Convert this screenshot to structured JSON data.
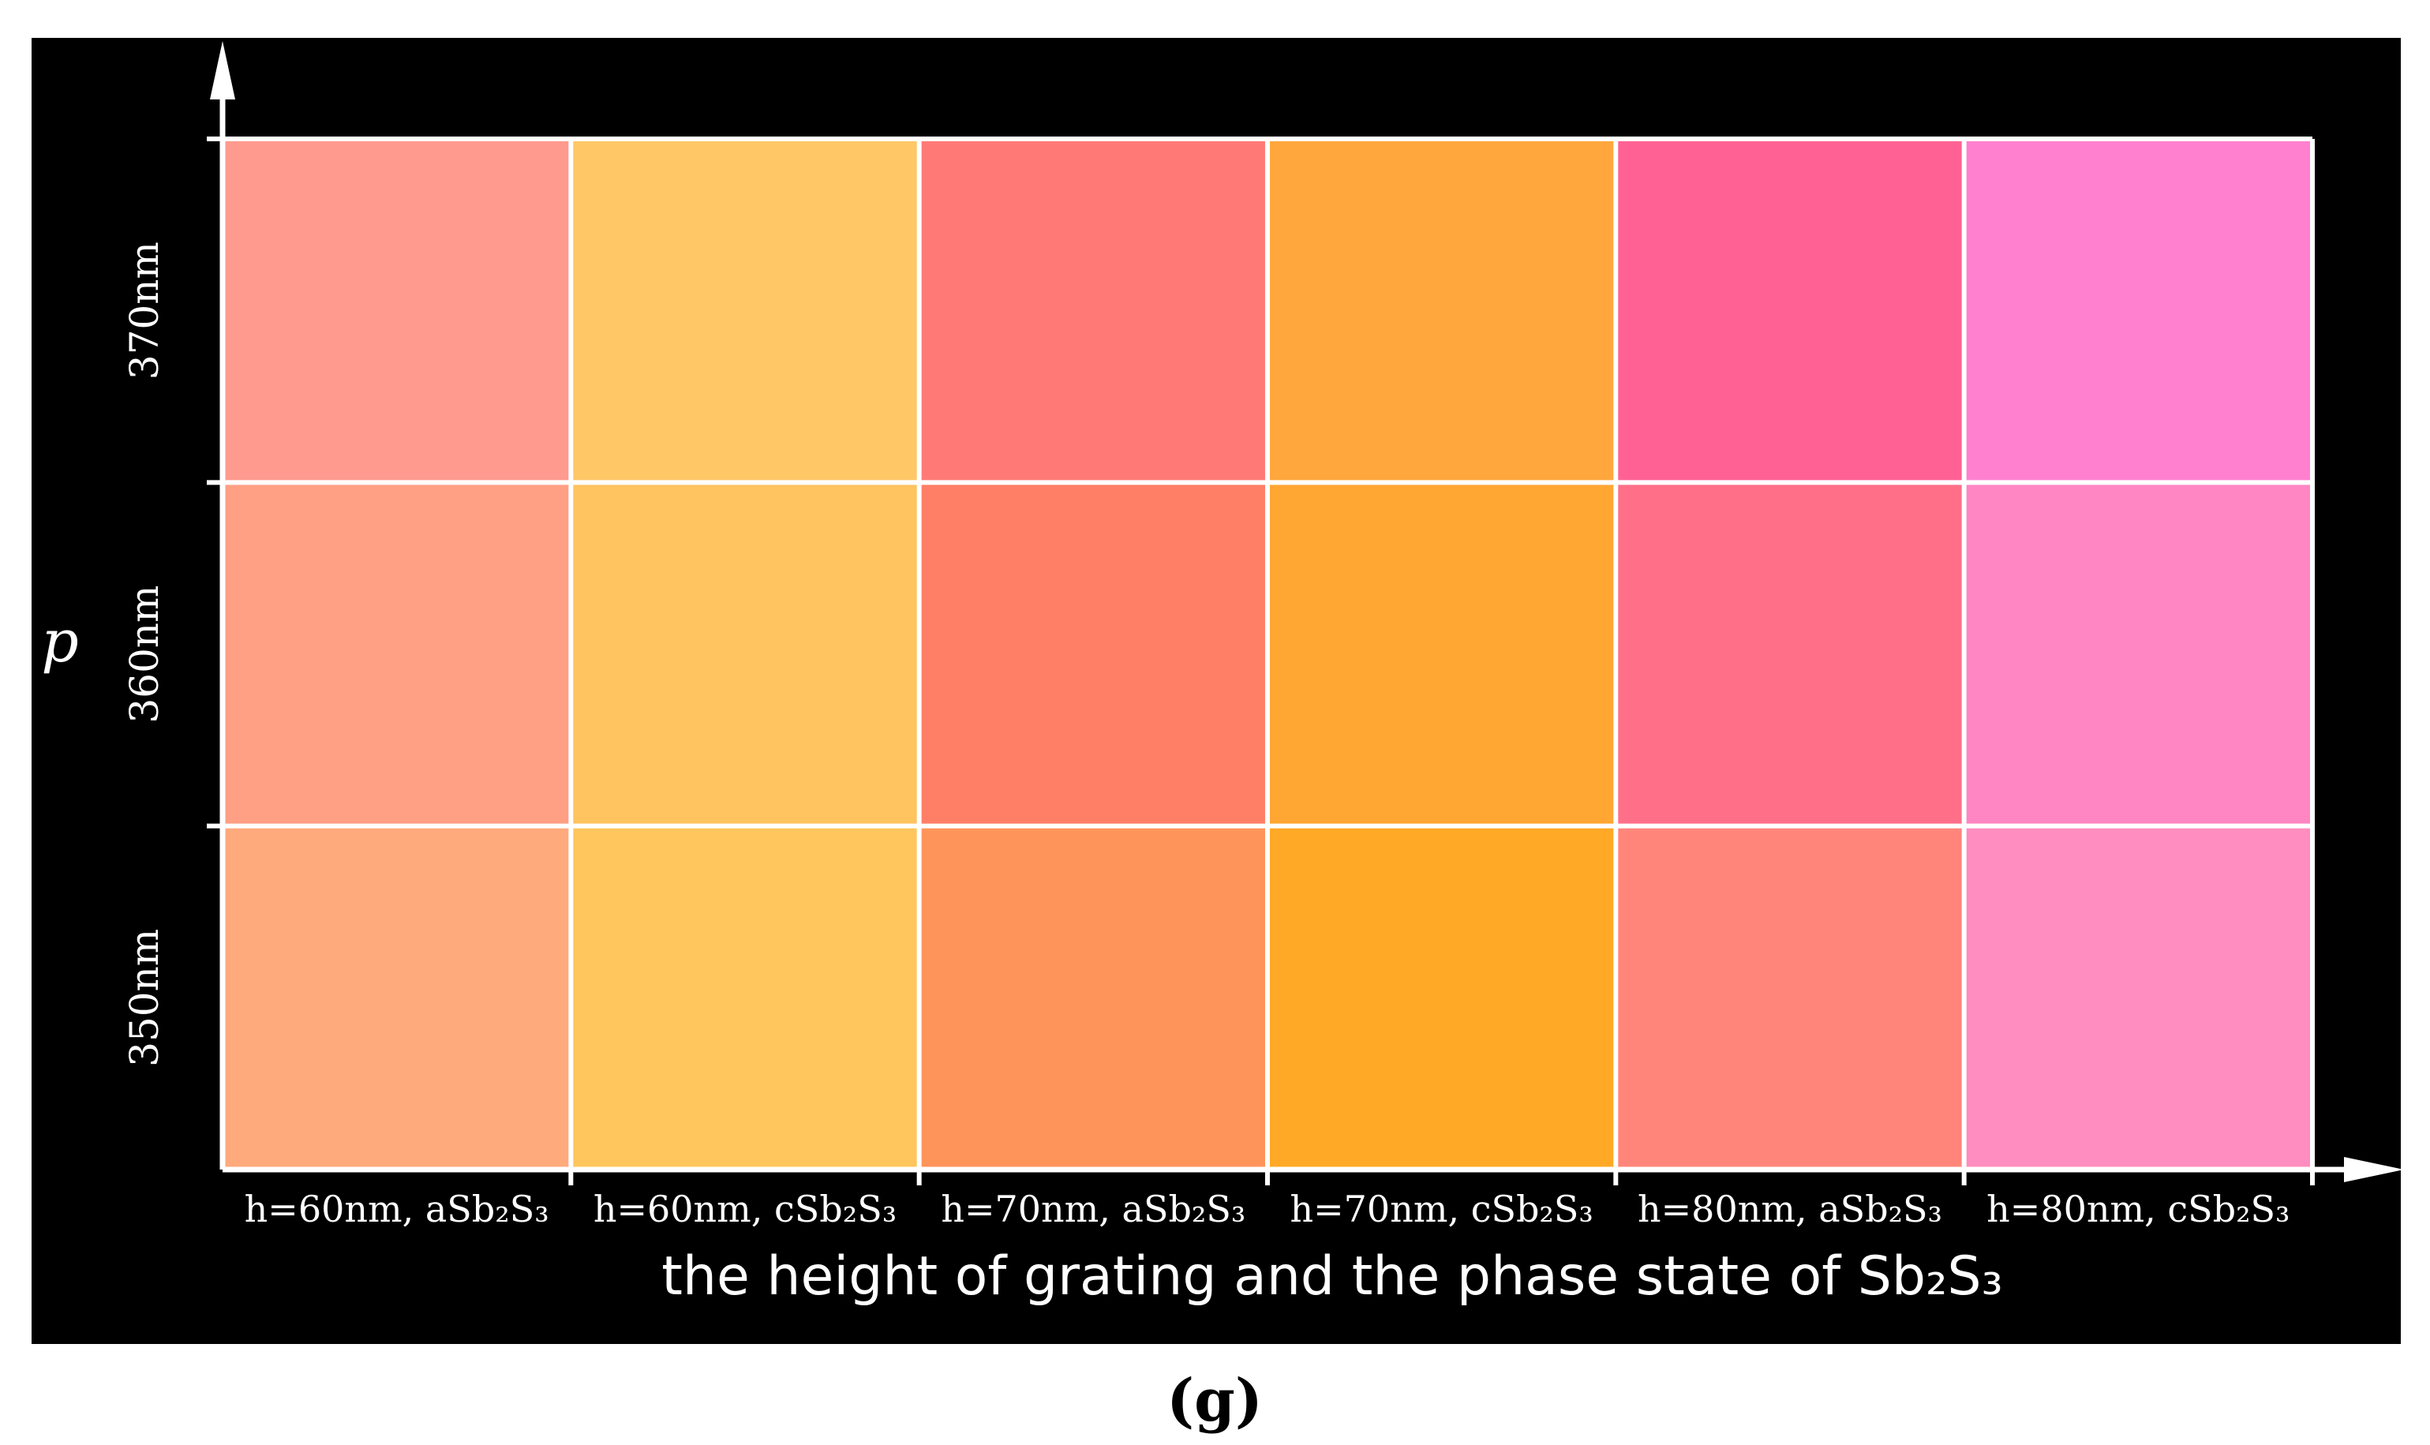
{
  "chart_data": {
    "type": "heatmap",
    "xlabel": "the height of grating and the phase state of Sb₂S₃",
    "ylabel": "p",
    "panel_label": "(g)",
    "x_categories": [
      "h=60nm, aSb₂S₃",
      "h=60nm, cSb₂S₃",
      "h=70nm, aSb₂S₃",
      "h=70nm, cSb₂S₃",
      "h=80nm, aSb₂S₃",
      "h=80nm, cSb₂S₃"
    ],
    "y_categories": [
      "370nm",
      "360nm",
      "350nm"
    ],
    "cells": [
      [
        "#FF9A8E",
        "#FFC766",
        "#FF7A77",
        "#FFA73D",
        "#FF6194",
        "#FF80CF"
      ],
      [
        "#FF9F83",
        "#FFC35F",
        "#FF7E66",
        "#FFA633",
        "#FF6F88",
        "#FF86C2"
      ],
      [
        "#FFAA7C",
        "#FFC65D",
        "#FF945B",
        "#FFA926",
        "#FF857B",
        "#FF8DBF"
      ]
    ],
    "grid": true,
    "colors": {
      "background": "#000000",
      "grid_line": "#ffffff",
      "text": "#ffffff"
    }
  }
}
